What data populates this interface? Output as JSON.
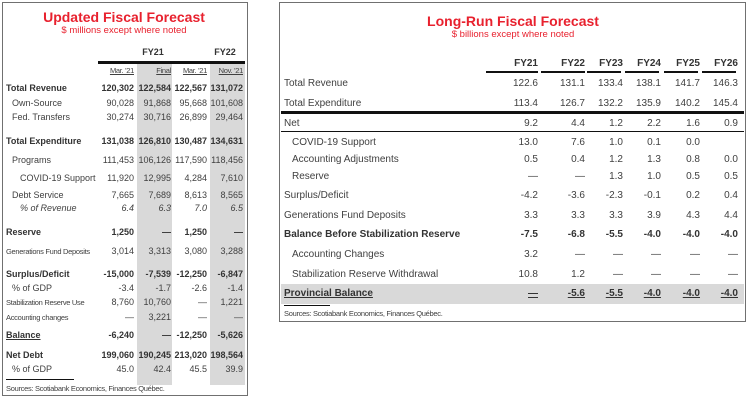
{
  "left": {
    "title": "Updated Fiscal Forecast",
    "subtitle": "$ millions except where noted",
    "groups": [
      "FY21",
      "FY22"
    ],
    "columns": [
      "Mar. '21",
      "Final",
      "Mar. '21",
      "Nov. '21"
    ],
    "rows": [
      {
        "label": "Total Revenue",
        "style": "bold",
        "values": [
          "120,302",
          "122,584",
          "122,567",
          "131,072"
        ]
      },
      {
        "label": "Own-Source",
        "style": "indent",
        "values": [
          "90,028",
          "91,868",
          "95,668",
          "101,608"
        ]
      },
      {
        "label": "Fed. Transfers",
        "style": "indent",
        "values": [
          "30,274",
          "30,716",
          "26,899",
          "29,464"
        ]
      },
      {
        "label": "Total Expenditure",
        "style": "bold",
        "values": [
          "131,038",
          "126,810",
          "130,487",
          "134,631"
        ]
      },
      {
        "label": "Programs",
        "style": "indent",
        "values": [
          "111,453",
          "106,126",
          "117,590",
          "118,456"
        ]
      },
      {
        "label": "COVID-19 Support",
        "style": "indent2",
        "values": [
          "11,920",
          "12,995",
          "4,284",
          "7,610"
        ]
      },
      {
        "label": "Debt Service",
        "style": "indent",
        "values": [
          "7,665",
          "7,689",
          "8,613",
          "8,565"
        ]
      },
      {
        "label": "% of Revenue",
        "style": "italic",
        "values": [
          "6.4",
          "6.3",
          "7.0",
          "6.5"
        ]
      },
      {
        "label": "Reserve",
        "style": "bold",
        "values": [
          "1,250",
          "—",
          "1,250",
          "—"
        ]
      },
      {
        "label": "Generations Fund Deposits",
        "style": "small",
        "values": [
          "3,014",
          "3,313",
          "3,080",
          "3,288"
        ]
      },
      {
        "label": "Surplus/Deficit",
        "style": "bold",
        "values": [
          "-15,000",
          "-7,539",
          "-12,250",
          "-6,847"
        ]
      },
      {
        "label": "% of GDP",
        "style": "indent",
        "values": [
          "-3.4",
          "-1.7",
          "-2.6",
          "-1.4"
        ]
      },
      {
        "label": "Stabilization Reserve Use",
        "style": "small",
        "values": [
          "8,760",
          "10,760",
          "—",
          "1,221"
        ]
      },
      {
        "label": "Accounting changes",
        "style": "small",
        "values": [
          "—",
          "3,221",
          "—",
          "—"
        ]
      },
      {
        "label": "Balance",
        "style": "boldu",
        "values": [
          "-6,240",
          "—",
          "-12,250",
          "-5,626"
        ]
      },
      {
        "label": "Net Debt",
        "style": "bold",
        "values": [
          "199,060",
          "190,245",
          "213,020",
          "198,564"
        ]
      },
      {
        "label": "% of GDP",
        "style": "indent",
        "values": [
          "45.0",
          "42.4",
          "45.5",
          "39.9"
        ]
      }
    ],
    "source": "Sources: Scotiabank Economics, Finances Québec."
  },
  "right": {
    "title": "Long-Run Fiscal Forecast",
    "subtitle": "$ billions except where noted",
    "columns": [
      "FY21",
      "FY22",
      "FY23",
      "FY24",
      "FY25",
      "FY26"
    ],
    "rows": [
      {
        "label": "Total Revenue",
        "style": "",
        "values": [
          "122.6",
          "131.1",
          "133.4",
          "138.1",
          "141.7",
          "146.3"
        ]
      },
      {
        "label": "Total Expenditure",
        "style": "",
        "values": [
          "113.4",
          "126.7",
          "132.2",
          "135.9",
          "140.2",
          "145.4"
        ]
      },
      {
        "label": "Net",
        "style": "",
        "values": [
          "9.2",
          "4.4",
          "1.2",
          "2.2",
          "1.6",
          "0.9"
        ]
      },
      {
        "label": "COVID-19 Support",
        "style": "indent",
        "values": [
          "13.0",
          "7.6",
          "1.0",
          "0.1",
          "0.0",
          ""
        ]
      },
      {
        "label": "Accounting Adjustments",
        "style": "indent",
        "values": [
          "0.5",
          "0.4",
          "1.2",
          "1.3",
          "0.8",
          "0.0"
        ]
      },
      {
        "label": "Reserve",
        "style": "indent",
        "values": [
          "—",
          "—",
          "1.3",
          "1.0",
          "0.5",
          "0.5"
        ]
      },
      {
        "label": "Surplus/Deficit",
        "style": "",
        "values": [
          "-4.2",
          "-3.6",
          "-2.3",
          "-0.1",
          "0.2",
          "0.4"
        ]
      },
      {
        "label": "Generations Fund Deposits",
        "style": "",
        "values": [
          "3.3",
          "3.3",
          "3.3",
          "3.9",
          "4.3",
          "4.4"
        ]
      },
      {
        "label": "Balance Before Stabilization Reserve",
        "style": "bold",
        "values": [
          "-7.5",
          "-6.8",
          "-5.5",
          "-4.0",
          "-4.0",
          "-4.0"
        ]
      },
      {
        "label": "Accounting Changes",
        "style": "indent",
        "values": [
          "3.2",
          "—",
          "—",
          "—",
          "—",
          "—"
        ]
      },
      {
        "label": "Stabilization Reserve Withdrawal",
        "style": "indent",
        "values": [
          "10.8",
          "1.2",
          "—",
          "—",
          "—",
          "—"
        ]
      },
      {
        "label": "Provincial Balance",
        "style": "total",
        "values": [
          "—",
          "-5.6",
          "-5.5",
          "-4.0",
          "-4.0",
          "-4.0"
        ]
      }
    ],
    "source": "Sources: Scotiabank Economics, Finances Québec."
  }
}
